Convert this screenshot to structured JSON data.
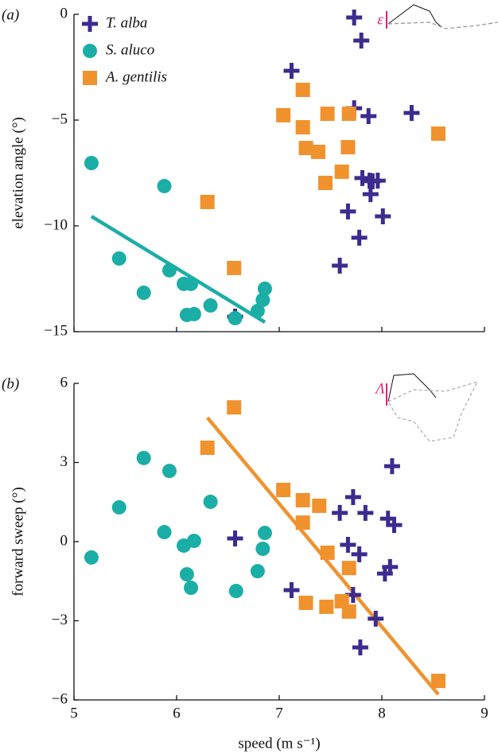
{
  "chart_data": [
    {
      "type": "scatter",
      "panel_label": "(a)",
      "ylabel": "elevation angle (°)",
      "annotation": "ε",
      "xlim": [
        5,
        9
      ],
      "xticks": [
        5,
        6,
        7,
        8,
        9
      ],
      "show_xtick_labels": false,
      "ylim": [
        -15,
        0
      ],
      "yticks": [
        0,
        {
          "value": -5,
          "label": "−5"
        },
        {
          "value": -10,
          "label": "−10"
        },
        {
          "value": -15,
          "label": "−15"
        }
      ],
      "legend": "upper left",
      "series": [
        {
          "name": "T.  alba",
          "color": "#3d2b8e",
          "marker": "plus",
          "x": [
            7.73,
            7.8,
            7.12,
            7.73,
            7.87,
            8.29,
            7.81,
            7.88,
            7.96,
            7.91,
            7.89,
            7.67,
            8.01,
            7.78,
            7.59,
            6.57
          ],
          "values": [
            -0.15,
            -1.24,
            -2.67,
            -4.44,
            -4.81,
            -4.66,
            -7.74,
            -7.86,
            -7.86,
            -7.89,
            -8.5,
            -9.32,
            -9.55,
            -10.56,
            -11.88,
            -14.29
          ]
        },
        {
          "name": "S. aluco",
          "color": "#1aaea6",
          "marker": "circle",
          "x": [
            5.17,
            5.88,
            5.44,
            5.68,
            5.93,
            6.07,
            6.14,
            6.1,
            6.17,
            6.33,
            6.57,
            6.79,
            6.84,
            6.86
          ],
          "values": [
            -7.03,
            -8.12,
            -11.54,
            -13.16,
            -12.1,
            -12.74,
            -12.74,
            -14.21,
            -14.17,
            -13.76,
            -14.36,
            -14.02,
            -13.5,
            -12.97
          ]
        },
        {
          "name": "A. gentilis",
          "color": "#f0922e",
          "marker": "square",
          "x": [
            7.23,
            7.04,
            7.47,
            7.68,
            7.23,
            7.26,
            7.38,
            7.67,
            7.61,
            7.45,
            6.3,
            6.56,
            8.55
          ],
          "values": [
            -3.57,
            -4.77,
            -4.7,
            -4.7,
            -5.34,
            -6.32,
            -6.5,
            -6.28,
            -7.44,
            -7.97,
            -8.87,
            -11.99,
            -5.64
          ]
        }
      ],
      "fits": [
        {
          "color": "#1aaea6",
          "x": [
            5.17,
            6.86
          ],
          "values": [
            -9.55,
            -14.55
          ]
        }
      ]
    },
    {
      "type": "scatter",
      "panel_label": "(b)",
      "ylabel": "forward sweep (°)",
      "xlabel": "speed (m s⁻¹)",
      "annotation": "Λ",
      "xlim": [
        5,
        9
      ],
      "xticks": [
        5,
        6,
        7,
        8,
        9
      ],
      "show_xtick_labels": true,
      "ylim": [
        -6,
        6
      ],
      "yticks": [
        {
          "value": -6,
          "label": "−6"
        },
        {
          "value": -3,
          "label": "−3"
        },
        0,
        3,
        6
      ],
      "series": [
        {
          "color": "#3d2b8e",
          "marker": "plus",
          "x": [
            8.1,
            7.72,
            7.84,
            8.06,
            8.12,
            7.59,
            7.67,
            7.78,
            6.57,
            8.03,
            8.08,
            7.12,
            7.72,
            7.94,
            7.79
          ],
          "values": [
            2.86,
            1.69,
            1.09,
            0.87,
            0.63,
            1.09,
            -0.12,
            -0.48,
            0.12,
            -1.21,
            -0.96,
            -1.84,
            -2.02,
            -2.92,
            -4.01
          ]
        },
        {
          "color": "#1aaea6",
          "marker": "circle",
          "x": [
            5.17,
            5.44,
            5.68,
            5.93,
            5.88,
            6.07,
            6.17,
            6.1,
            6.14,
            6.33,
            6.58,
            6.79,
            6.86,
            6.84
          ],
          "values": [
            -0.6,
            1.3,
            3.17,
            2.68,
            0.36,
            -0.15,
            0.03,
            -1.24,
            -1.75,
            1.51,
            -1.87,
            -1.12,
            0.33,
            -0.27
          ]
        },
        {
          "color": "#f0922e",
          "marker": "square",
          "x": [
            6.56,
            6.3,
            7.04,
            7.23,
            7.39,
            7.23,
            7.47,
            7.68,
            7.26,
            7.46,
            7.61,
            7.68,
            8.55
          ],
          "values": [
            5.09,
            3.56,
            1.96,
            1.57,
            1.36,
            0.72,
            -0.42,
            -1.0,
            -2.32,
            -2.47,
            -2.26,
            -2.65,
            -5.28
          ]
        }
      ],
      "fits": [
        {
          "color": "#f0922e",
          "x": [
            6.3,
            8.55
          ],
          "values": [
            4.7,
            -5.79
          ]
        }
      ]
    }
  ]
}
